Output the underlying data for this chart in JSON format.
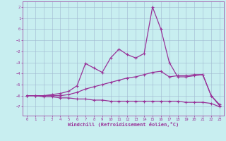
{
  "x": [
    0,
    1,
    2,
    3,
    4,
    5,
    6,
    7,
    8,
    9,
    10,
    11,
    12,
    13,
    14,
    15,
    16,
    17,
    18,
    19,
    20,
    21,
    22,
    23
  ],
  "line_bottom": [
    -6.0,
    -6.0,
    -6.1,
    -6.1,
    -6.2,
    -6.2,
    -6.3,
    -6.3,
    -6.4,
    -6.4,
    -6.5,
    -6.5,
    -6.5,
    -6.5,
    -6.5,
    -6.5,
    -6.5,
    -6.5,
    -6.5,
    -6.6,
    -6.6,
    -6.6,
    -6.7,
    -7.0
  ],
  "line_mid": [
    -6.0,
    -6.0,
    -6.0,
    -6.0,
    -6.0,
    -5.9,
    -5.7,
    -5.4,
    -5.2,
    -5.0,
    -4.8,
    -4.6,
    -4.4,
    -4.3,
    -4.1,
    -3.9,
    -3.8,
    -4.3,
    -4.2,
    -4.2,
    -4.1,
    -4.1,
    -6.0,
    -6.8
  ],
  "line_upper": [
    -6.0,
    -6.0,
    -6.0,
    -5.9,
    -5.8,
    -5.6,
    -5.1,
    -3.1,
    -3.5,
    -3.9,
    -2.6,
    -1.8,
    -2.3,
    -2.6,
    -2.2,
    2.0,
    0.0,
    -3.0,
    -4.3,
    -4.3,
    -4.2,
    -4.1,
    -6.0,
    -6.9
  ],
  "background_color": "#c8eef0",
  "grid_color": "#a0b8d0",
  "line_color": "#993399",
  "xlabel": "Windchill (Refroidissement éolien,°C)",
  "ylim": [
    -7.8,
    2.5
  ],
  "xlim": [
    -0.5,
    23.5
  ],
  "yticks": [
    2,
    1,
    0,
    -1,
    -2,
    -3,
    -4,
    -5,
    -6,
    -7
  ],
  "xticks": [
    0,
    1,
    2,
    3,
    4,
    5,
    6,
    7,
    8,
    9,
    10,
    11,
    12,
    13,
    14,
    15,
    16,
    17,
    18,
    19,
    20,
    21,
    22,
    23
  ]
}
